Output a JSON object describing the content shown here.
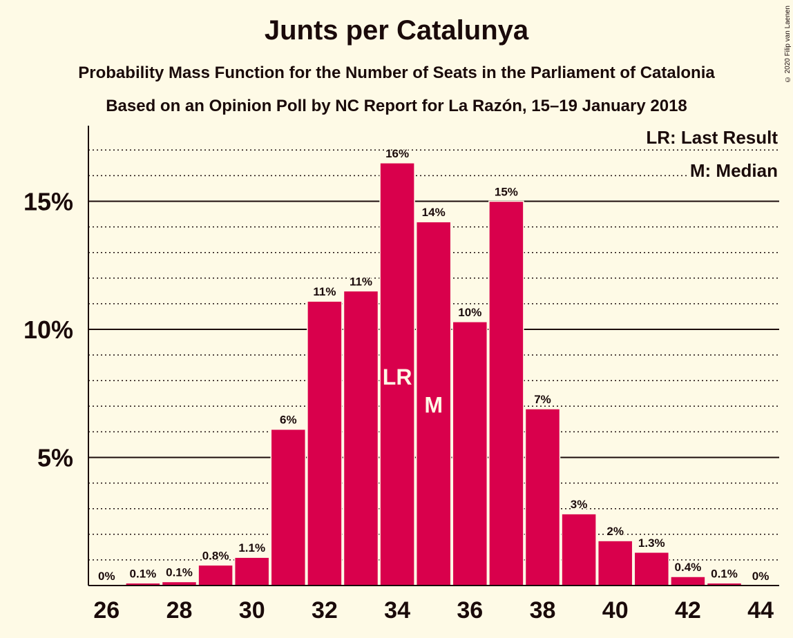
{
  "title": "Junts per Catalunya",
  "subtitle": "Probability Mass Function for the Number of Seats in the Parliament of Catalonia",
  "subtitle2": "Based on an Opinion Poll by NC Report for La Razón, 15–19 January 2018",
  "copyright": "© 2020 Filip van Laenen",
  "legend": {
    "lr": "LR: Last Result",
    "m": "M: Median"
  },
  "colors": {
    "bar": "#d9004c",
    "background": "#fefae6",
    "text": "#1a0a0a"
  },
  "chart_data": {
    "type": "bar",
    "title": "Junts per Catalunya",
    "x": [
      26,
      27,
      28,
      29,
      30,
      31,
      32,
      33,
      34,
      35,
      36,
      37,
      38,
      39,
      40,
      41,
      42,
      43,
      44
    ],
    "values": [
      0,
      0.1,
      0.15,
      0.8,
      1.1,
      6.1,
      11.1,
      11.5,
      16.5,
      14.2,
      10.3,
      15.0,
      6.9,
      2.8,
      1.75,
      1.3,
      0.35,
      0.1,
      0
    ],
    "labels": [
      "0%",
      "0.1%",
      "0.1%",
      "0.8%",
      "1.1%",
      "6%",
      "11%",
      "11%",
      "16%",
      "14%",
      "10%",
      "15%",
      "7%",
      "3%",
      "2%",
      "1.3%",
      "0.4%",
      "0.1%",
      "0%"
    ],
    "x_tick_labels": [
      "26",
      "28",
      "30",
      "32",
      "34",
      "36",
      "38",
      "40",
      "42",
      "44"
    ],
    "y_ticks": [
      5,
      10,
      15
    ],
    "y_tick_labels": [
      "5%",
      "10%",
      "15%"
    ],
    "ylim": [
      0,
      17.5
    ],
    "last_result_seat": 34,
    "median_seat": 35,
    "last_result_marker": "LR",
    "median_marker": "M"
  }
}
